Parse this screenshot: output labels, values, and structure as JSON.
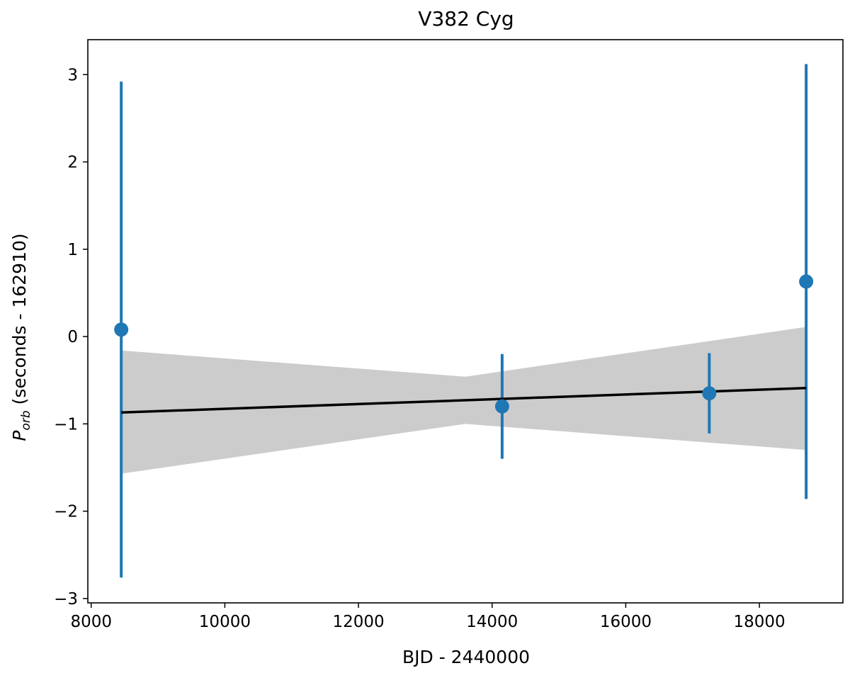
{
  "chart_data": {
    "type": "scatter",
    "title": "V382 Cyg",
    "xlabel": "BJD - 2440000",
    "ylabel": {
      "symbol": "P",
      "subscript": "orb",
      "rest": " (seconds - 162910)"
    },
    "xlim": [
      7950,
      19250
    ],
    "ylim": [
      -3.05,
      3.4
    ],
    "xticks": [
      8000,
      10000,
      12000,
      14000,
      16000,
      18000
    ],
    "xtick_labels": [
      "8000",
      "10000",
      "12000",
      "14000",
      "16000",
      "18000"
    ],
    "yticks": [
      -3,
      -2,
      -1,
      0,
      1,
      2,
      3
    ],
    "ytick_labels": [
      "−3",
      "−2",
      "−1",
      "0",
      "1",
      "2",
      "3"
    ],
    "series": [
      {
        "name": "Porb measurements",
        "kind": "errorbar",
        "x": [
          8450,
          14150,
          17250,
          18700
        ],
        "y": [
          0.08,
          -0.8,
          -0.65,
          0.63
        ],
        "yerr_low": [
          2.84,
          0.6,
          0.46,
          2.49
        ],
        "yerr_high": [
          2.84,
          0.6,
          0.46,
          2.49
        ]
      },
      {
        "name": "linear fit",
        "kind": "line",
        "x": [
          8450,
          18700
        ],
        "y": [
          -0.87,
          -0.59
        ]
      },
      {
        "name": "fit uncertainty band",
        "kind": "band",
        "x": [
          8450,
          13600,
          18700
        ],
        "lower": [
          -1.57,
          -1.0,
          -1.3
        ],
        "upper": [
          -0.16,
          -0.46,
          0.11
        ]
      }
    ],
    "colors": {
      "points": "#1f77b4",
      "fit_line": "#000000",
      "band": "#cccccc",
      "axes": "#000000"
    },
    "grid": false,
    "legend": "none"
  }
}
